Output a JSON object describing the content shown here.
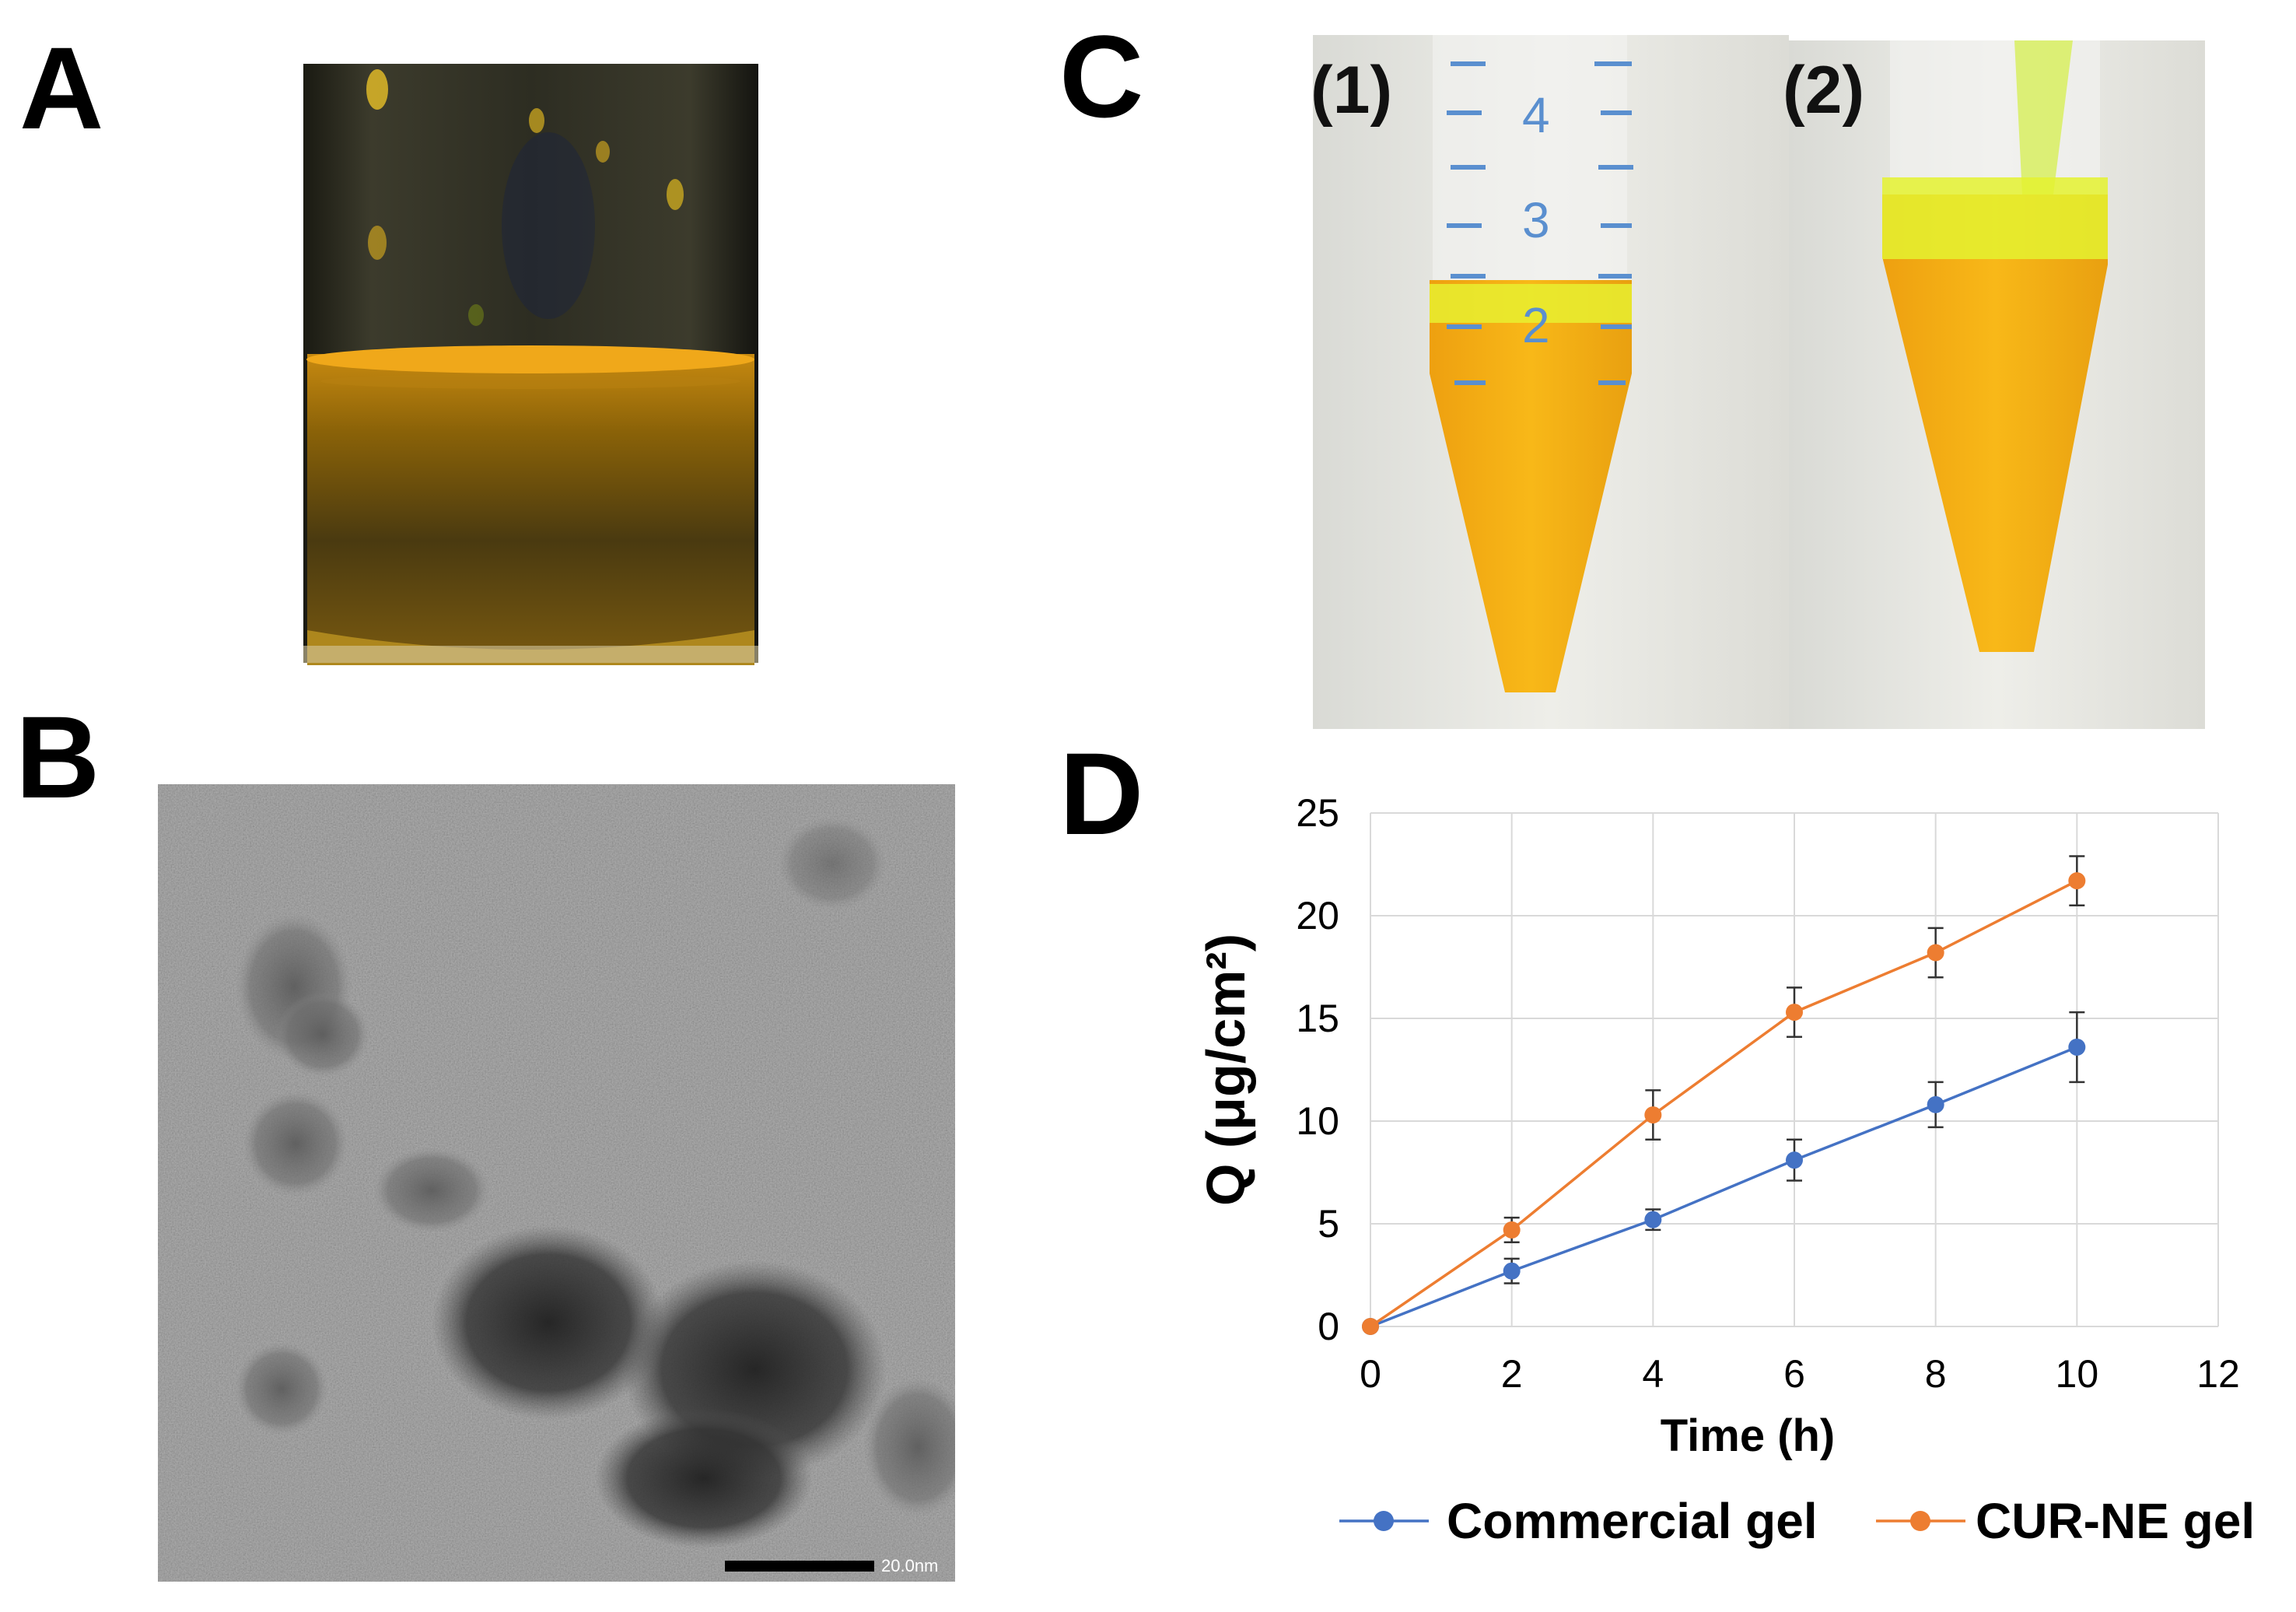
{
  "panels": {
    "a": {
      "letter": "A"
    },
    "b": {
      "letter": "B",
      "scale_bar_label": "20.0nm"
    },
    "c": {
      "letter": "C",
      "tube1_label": "(1)",
      "tube2_label": "(2)",
      "tube1_graduations": [
        "4",
        "3",
        "2"
      ]
    },
    "d": {
      "letter": "D"
    }
  },
  "chart_data": {
    "type": "line",
    "title": "",
    "xlabel": "Time (h)",
    "ylabel": "Q (μg/cm²)",
    "xlim": [
      0,
      12
    ],
    "ylim": [
      0,
      25
    ],
    "xticks": [
      "0",
      "2",
      "4",
      "6",
      "8",
      "10",
      "12"
    ],
    "yticks": [
      "0",
      "5",
      "10",
      "15",
      "20",
      "25"
    ],
    "grid": true,
    "legend": "bottom",
    "x": [
      0,
      2,
      4,
      6,
      8,
      10
    ],
    "series": [
      {
        "name": "Commercial gel",
        "color": "#4472c4",
        "values": [
          0,
          2.7,
          5.2,
          8.1,
          10.8,
          13.6
        ],
        "errors": [
          0,
          0.6,
          0.5,
          1.0,
          1.1,
          1.7
        ]
      },
      {
        "name": "CUR-NE gel",
        "color": "#ed7d31",
        "values": [
          0,
          4.7,
          10.3,
          15.3,
          18.2,
          21.7
        ],
        "errors": [
          0,
          0.6,
          1.2,
          1.2,
          1.2,
          1.2
        ]
      }
    ]
  }
}
